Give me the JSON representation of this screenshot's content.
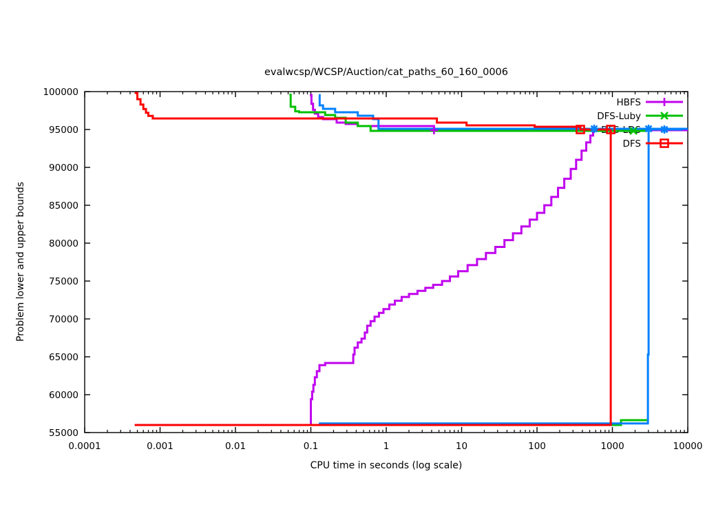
{
  "window": {
    "background": "#ffffff"
  },
  "chart_data": {
    "type": "line",
    "title": "evalwcsp/WCSP/Auction/cat_paths_60_160_0006",
    "xlabel": "CPU time in seconds (log scale)",
    "ylabel": "Problem lower and upper bounds",
    "x_scale": "log",
    "xlim": [
      0.0001,
      10000
    ],
    "ylim": [
      55000,
      100000
    ],
    "x_tick_labels": [
      "0.0001",
      "0.001",
      "0.01",
      "0.1",
      "1",
      "10",
      "100",
      "1000",
      "10000"
    ],
    "x_tick_values": [
      0.0001,
      0.001,
      0.01,
      0.1,
      1,
      10,
      100,
      1000,
      10000
    ],
    "y_tick_labels": [
      "55000",
      "60000",
      "65000",
      "70000",
      "75000",
      "80000",
      "85000",
      "90000",
      "95000",
      "100000"
    ],
    "y_tick_values": [
      55000,
      60000,
      65000,
      70000,
      75000,
      80000,
      85000,
      90000,
      95000,
      100000
    ],
    "grid": false,
    "legend_position": "top-right-inside",
    "legend_entries": [
      "HBFS",
      "DFS-Luby",
      "DFS-LDS",
      "DFS"
    ],
    "series": [
      {
        "name": "HBFS",
        "color": "#C000EE",
        "marker": "plus",
        "upper_bound": [
          [
            0.097,
            99545
          ],
          [
            0.102,
            98400
          ],
          [
            0.107,
            97600
          ],
          [
            0.113,
            97091
          ],
          [
            0.125,
            96636
          ],
          [
            0.145,
            96364
          ],
          [
            0.22,
            95909
          ],
          [
            0.29,
            95727
          ],
          [
            0.42,
            95455
          ],
          [
            4.3,
            94909
          ],
          [
            10000,
            94909
          ]
        ],
        "lower_bound": [
          [
            0.097,
            56000
          ],
          [
            0.1,
            56000
          ],
          [
            0.1,
            59400
          ],
          [
            0.104,
            60400
          ],
          [
            0.108,
            61300
          ],
          [
            0.113,
            62300
          ],
          [
            0.12,
            63100
          ],
          [
            0.13,
            63900
          ],
          [
            0.155,
            64182
          ],
          [
            0.36,
            64182
          ],
          [
            0.365,
            65300
          ],
          [
            0.38,
            66200
          ],
          [
            0.42,
            66900
          ],
          [
            0.47,
            67400
          ],
          [
            0.52,
            68200
          ],
          [
            0.56,
            69100
          ],
          [
            0.62,
            69700
          ],
          [
            0.7,
            70300
          ],
          [
            0.8,
            70800
          ],
          [
            0.92,
            71300
          ],
          [
            1.1,
            71900
          ],
          [
            1.3,
            72400
          ],
          [
            1.6,
            72900
          ],
          [
            2.0,
            73300
          ],
          [
            2.6,
            73700
          ],
          [
            3.3,
            74100
          ],
          [
            4.2,
            74500
          ],
          [
            5.5,
            75000
          ],
          [
            7.0,
            75600
          ],
          [
            9.0,
            76300
          ],
          [
            12,
            77100
          ],
          [
            16,
            77900
          ],
          [
            21,
            78700
          ],
          [
            28,
            79500
          ],
          [
            37,
            80400
          ],
          [
            48,
            81300
          ],
          [
            62,
            82200
          ],
          [
            80,
            83100
          ],
          [
            100,
            84000
          ],
          [
            125,
            85000
          ],
          [
            155,
            86100
          ],
          [
            190,
            87300
          ],
          [
            230,
            88500
          ],
          [
            280,
            89800
          ],
          [
            330,
            91000
          ],
          [
            390,
            92200
          ],
          [
            450,
            93300
          ],
          [
            510,
            94200
          ],
          [
            555,
            94700
          ],
          [
            573,
            94909
          ]
        ],
        "point_markers": [
          [
            4.3,
            94909
          ]
        ]
      },
      {
        "name": "DFS-Luby",
        "color": "#00C000",
        "marker": "x",
        "upper_bound": [
          [
            0.052,
            99600
          ],
          [
            0.054,
            98000
          ],
          [
            0.062,
            97400
          ],
          [
            0.07,
            97273
          ],
          [
            0.155,
            96909
          ],
          [
            0.21,
            96545
          ],
          [
            0.29,
            95909
          ],
          [
            0.42,
            95455
          ],
          [
            0.62,
            94818
          ],
          [
            2900,
            94818
          ]
        ],
        "lower_bound": [
          [
            0.052,
            56000
          ],
          [
            1300,
            56000
          ],
          [
            1300,
            56636
          ],
          [
            2900,
            56636
          ]
        ],
        "point_markers": [
          [
            1900,
            94818
          ]
        ]
      },
      {
        "name": "DFS-LDS",
        "color": "#0080FF",
        "marker": "asterisk",
        "upper_bound": [
          [
            0.128,
            99545
          ],
          [
            0.131,
            98182
          ],
          [
            0.145,
            97727
          ],
          [
            0.21,
            97273
          ],
          [
            0.42,
            96818
          ],
          [
            0.67,
            96364
          ],
          [
            0.79,
            95091
          ],
          [
            10000,
            95091
          ]
        ],
        "lower_bound": [
          [
            0.128,
            56200
          ],
          [
            2960,
            56200
          ],
          [
            2960,
            65300
          ],
          [
            3020,
            65300
          ],
          [
            3020,
            95091
          ],
          [
            10000,
            95091
          ]
        ],
        "point_markers": [
          [
            573,
            95091
          ],
          [
            3020,
            95091
          ]
        ]
      },
      {
        "name": "DFS",
        "color": "#FF0000",
        "marker": "square",
        "upper_bound": [
          [
            0.00046,
            99818
          ],
          [
            0.0005,
            99000
          ],
          [
            0.00055,
            98300
          ],
          [
            0.0006,
            97700
          ],
          [
            0.00065,
            97200
          ],
          [
            0.0007,
            96800
          ],
          [
            0.0008,
            96455
          ],
          [
            4.7,
            95909
          ],
          [
            11.6,
            95545
          ],
          [
            93,
            95364
          ],
          [
            376,
            95000
          ],
          [
            950,
            95000
          ]
        ],
        "lower_bound": [
          [
            0.00046,
            56000
          ],
          [
            950,
            56000
          ],
          [
            950,
            95000
          ]
        ],
        "point_markers": [
          [
            376,
            95000
          ],
          [
            950,
            95000
          ]
        ]
      }
    ]
  }
}
